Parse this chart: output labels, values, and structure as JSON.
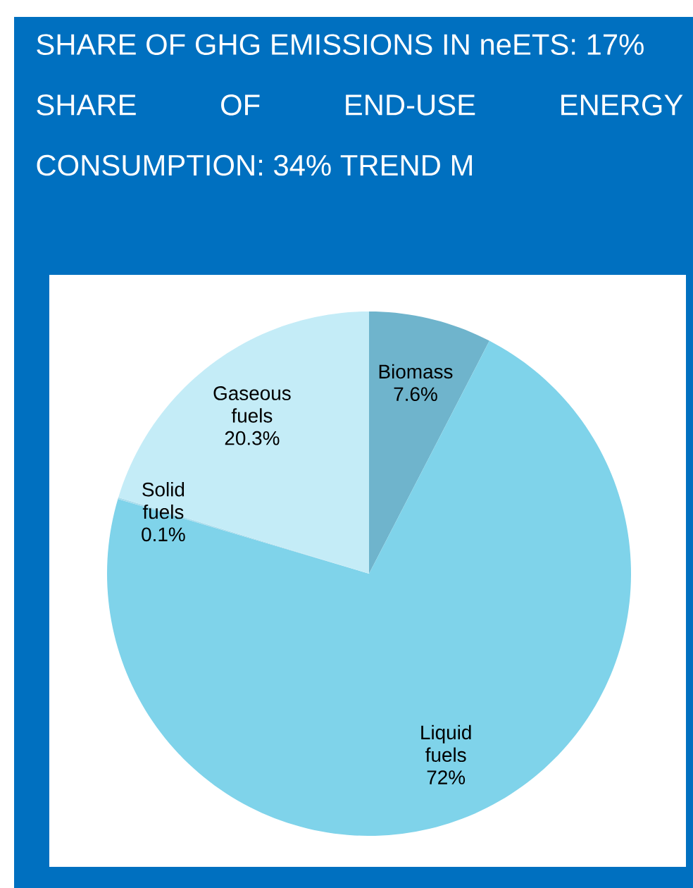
{
  "chart_data": {
    "type": "pie",
    "title": "SHARE OF GHG EMISSIONS IN neETS: 17%",
    "subtitle": "SHARE OF END-USE ENERGY CONSUMPTION: 34% TREND M",
    "categories": [
      "Biomass",
      "Liquid fuels",
      "Solid fuels",
      "Gaseous fuels"
    ],
    "values": [
      7.6,
      72,
      0.1,
      20.3
    ],
    "value_labels": [
      "7.6%",
      "72%",
      "0.1%",
      "20.3%"
    ],
    "colors": [
      "#6fb4cc",
      "#7fd3ea",
      "#a9dcec",
      "#c4ecf7"
    ]
  }
}
